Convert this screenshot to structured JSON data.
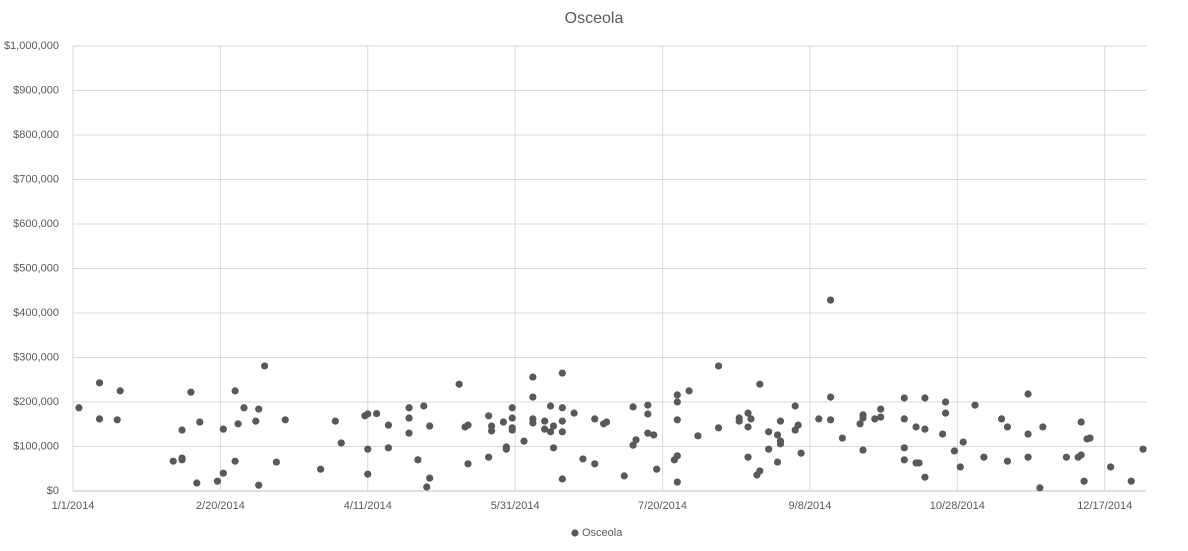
{
  "chart_data": {
    "type": "scatter",
    "title": "Osceola",
    "x": [
      "1/3/2014",
      "1/10/2014",
      "1/10/2014",
      "1/16/2014",
      "1/17/2014",
      "2/4/2014",
      "2/7/2014",
      "2/7/2014",
      "2/7/2014",
      "2/10/2014",
      "2/12/2014",
      "2/13/2014",
      "2/19/2014",
      "2/21/2014",
      "2/21/2014",
      "2/25/2014",
      "2/25/2014",
      "2/26/2014",
      "2/28/2014",
      "3/4/2014",
      "3/5/2014",
      "3/5/2014",
      "3/7/2014",
      "3/11/2014",
      "3/14/2014",
      "3/26/2014",
      "3/31/2014",
      "4/2/2014",
      "4/10/2014",
      "4/11/2014",
      "4/11/2014",
      "4/11/2014",
      "4/14/2014",
      "4/18/2014",
      "4/18/2014",
      "4/25/2014",
      "4/25/2014",
      "4/25/2014",
      "4/28/2014",
      "4/30/2014",
      "5/1/2014",
      "5/2/2014",
      "5/2/2014",
      "5/12/2014",
      "5/14/2014",
      "5/15/2014",
      "5/15/2014",
      "5/22/2014",
      "5/22/2014",
      "5/23/2014",
      "5/23/2014",
      "5/27/2014",
      "5/28/2014",
      "5/28/2014",
      "5/30/2014",
      "5/30/2014",
      "5/30/2014",
      "5/30/2014",
      "6/3/2014",
      "6/6/2014",
      "6/6/2014",
      "6/6/2014",
      "6/6/2014",
      "6/10/2014",
      "6/10/2014",
      "6/12/2014",
      "6/12/2014",
      "6/13/2014",
      "6/13/2014",
      "6/16/2014",
      "6/16/2014",
      "6/16/2014",
      "6/16/2014",
      "6/16/2014",
      "6/20/2014",
      "6/23/2014",
      "6/27/2014",
      "6/27/2014",
      "6/30/2014",
      "7/1/2014",
      "7/7/2014",
      "7/10/2014",
      "7/10/2014",
      "7/11/2014",
      "7/15/2014",
      "7/15/2014",
      "7/15/2014",
      "7/17/2014",
      "7/18/2014",
      "7/24/2014",
      "7/25/2014",
      "7/25/2014",
      "7/25/2014",
      "7/25/2014",
      "7/25/2014",
      "7/29/2014",
      "8/1/2014",
      "8/8/2014",
      "8/8/2014",
      "8/15/2014",
      "8/15/2014",
      "8/18/2014",
      "8/18/2014",
      "8/18/2014",
      "8/19/2014",
      "8/21/2014",
      "8/22/2014",
      "8/22/2014",
      "8/25/2014",
      "8/25/2014",
      "8/28/2014",
      "8/28/2014",
      "8/29/2014",
      "8/29/2014",
      "8/29/2014",
      "9/3/2014",
      "9/3/2014",
      "9/4/2014",
      "9/5/2014",
      "9/11/2014",
      "9/15/2014",
      "9/15/2014",
      "9/15/2014",
      "9/19/2014",
      "9/25/2014",
      "9/26/2014",
      "9/26/2014",
      "9/26/2014",
      "9/30/2014",
      "10/2/2014",
      "10/2/2014",
      "10/10/2014",
      "10/10/2014",
      "10/10/2014",
      "10/10/2014",
      "10/14/2014",
      "10/14/2014",
      "10/15/2014",
      "10/17/2014",
      "10/17/2014",
      "10/17/2014",
      "10/23/2014",
      "10/24/2014",
      "10/24/2014",
      "10/27/2014",
      "10/29/2014",
      "10/30/2014",
      "11/3/2014",
      "11/6/2014",
      "11/12/2014",
      "11/14/2014",
      "11/14/2014",
      "11/21/2014",
      "11/21/2014",
      "11/21/2014",
      "11/25/2014",
      "11/26/2014",
      "12/4/2014",
      "12/8/2014",
      "12/9/2014",
      "12/9/2014",
      "12/10/2014",
      "12/11/2014",
      "12/12/2014",
      "12/19/2014",
      "12/26/2014",
      "12/30/2014"
    ],
    "series": [
      {
        "name": "Osceola",
        "color": "#595959",
        "values": [
          187000,
          243000,
          162000,
          160000,
          225000,
          67000,
          137000,
          74000,
          70000,
          222000,
          18000,
          155000,
          22000,
          139000,
          40000,
          225000,
          67000,
          151000,
          187000,
          157000,
          184000,
          13000,
          281000,
          65000,
          160000,
          49000,
          157000,
          108000,
          169000,
          94000,
          38000,
          173000,
          174000,
          148000,
          97000,
          130000,
          187000,
          164000,
          70000,
          191000,
          9000,
          146000,
          29000,
          240000,
          144000,
          148000,
          61000,
          76000,
          169000,
          146000,
          135000,
          155000,
          99000,
          94000,
          164000,
          187000,
          142000,
          137000,
          112000,
          256000,
          211000,
          162000,
          153000,
          157000,
          139000,
          191000,
          133000,
          97000,
          146000,
          27000,
          265000,
          187000,
          133000,
          157000,
          175000,
          72000,
          61000,
          162000,
          151000,
          155000,
          34000,
          189000,
          103000,
          115000,
          193000,
          173000,
          130000,
          126000,
          49000,
          70000,
          216000,
          200000,
          160000,
          79000,
          20000,
          225000,
          124000,
          281000,
          142000,
          164000,
          157000,
          175000,
          144000,
          76000,
          162000,
          36000,
          45000,
          240000,
          133000,
          94000,
          126000,
          65000,
          157000,
          112000,
          106000,
          191000,
          137000,
          148000,
          85000,
          162000,
          429000,
          211000,
          160000,
          119000,
          151000,
          171000,
          164000,
          92000,
          162000,
          184000,
          166000,
          209000,
          162000,
          97000,
          70000,
          144000,
          63000,
          63000,
          209000,
          139000,
          31000,
          128000,
          200000,
          175000,
          90000,
          54000,
          110000,
          193000,
          76000,
          162000,
          144000,
          67000,
          218000,
          128000,
          76000,
          7000,
          144000,
          76000,
          76000,
          155000,
          81000,
          22000,
          117000,
          119000,
          54000,
          22000,
          94000
        ]
      }
    ],
    "xlim": [
      "1/1/2014",
      "12/31/2014"
    ],
    "xticks": [
      "1/1/2014",
      "2/20/2014",
      "4/11/2014",
      "5/31/2014",
      "7/20/2014",
      "9/8/2014",
      "10/28/2014",
      "12/17/2014"
    ],
    "ylim": [
      0,
      1000000
    ],
    "yticks": [
      {
        "value": 0,
        "label": "$0"
      },
      {
        "value": 100000,
        "label": "$100,000"
      },
      {
        "value": 200000,
        "label": "$200,000"
      },
      {
        "value": 300000,
        "label": "$300,000"
      },
      {
        "value": 400000,
        "label": "$400,000"
      },
      {
        "value": 500000,
        "label": "$500,000"
      },
      {
        "value": 600000,
        "label": "$600,000"
      },
      {
        "value": 700000,
        "label": "$700,000"
      },
      {
        "value": 800000,
        "label": "$800,000"
      },
      {
        "value": 900000,
        "label": "$900,000"
      },
      {
        "value": 1000000,
        "label": "$1,000,000"
      }
    ],
    "grid": true,
    "legend": "bottom"
  }
}
